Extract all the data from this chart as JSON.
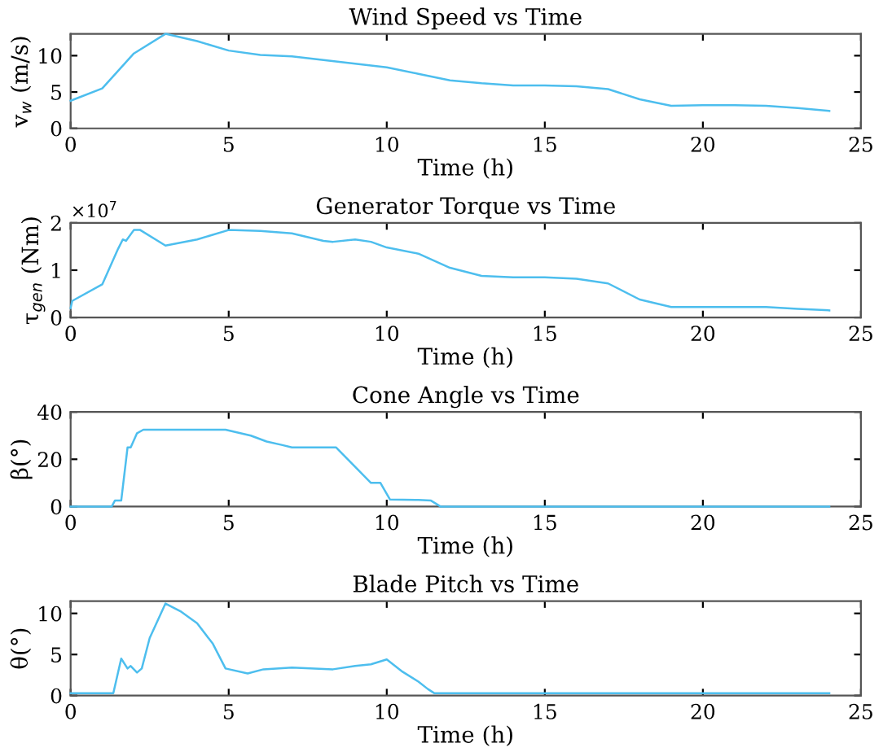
{
  "chart_data": [
    {
      "type": "line",
      "title": "Wind Speed vs Time",
      "xlabel": "Time (h)",
      "ylabel": "v$_{w}$ (m/s)",
      "xlim": [
        0,
        25
      ],
      "xticks": [
        0,
        5,
        10,
        15,
        20,
        25
      ],
      "ylim": [
        0,
        13
      ],
      "yticks": [
        0,
        5,
        10
      ],
      "grid": false,
      "legend": false,
      "x": [
        0,
        1,
        2,
        3,
        4,
        5,
        6,
        7,
        8,
        9,
        10,
        11,
        12,
        13,
        14,
        15,
        16,
        17,
        18,
        19,
        20,
        21,
        22,
        23,
        24
      ],
      "series": [
        {
          "color": "#4dbeee",
          "values": [
            3.8,
            5.5,
            10.3,
            13,
            12,
            10.7,
            10.1,
            9.9,
            9.4,
            8.9,
            8.4,
            7.5,
            6.6,
            6.2,
            5.9,
            5.9,
            5.8,
            5.4,
            4,
            3.1,
            3.2,
            3.2,
            3.1,
            2.8,
            2.4
          ]
        }
      ]
    },
    {
      "type": "line",
      "title": "Generator Torque vs Time",
      "xlabel": "Time (h)",
      "ylabel": "τ$_{gen}$ (Nm)",
      "annotations": [
        "×10$^{7}$"
      ],
      "xlim": [
        0,
        25
      ],
      "xticks": [
        0,
        5,
        10,
        15,
        20,
        25
      ],
      "ylim": [
        0,
        2
      ],
      "yticks": [
        0,
        1,
        2
      ],
      "grid": false,
      "legend": false,
      "x": [
        0,
        0.05,
        1,
        1.5,
        1.65,
        1.75,
        2,
        2.2,
        3,
        4,
        5,
        6,
        7,
        8,
        8.3,
        9,
        9.5,
        10,
        11,
        12,
        13,
        14,
        15,
        16,
        17,
        18,
        19,
        20,
        22,
        23,
        24
      ],
      "series": [
        {
          "color": "#4dbeee",
          "values": [
            0.2,
            0.35,
            0.7,
            1.45,
            1.65,
            1.62,
            1.85,
            1.85,
            1.52,
            1.65,
            1.85,
            1.83,
            1.78,
            1.62,
            1.6,
            1.65,
            1.6,
            1.48,
            1.35,
            1.05,
            0.88,
            0.85,
            0.85,
            0.82,
            0.72,
            0.38,
            0.22,
            0.22,
            0.22,
            0.18,
            0.15
          ]
        }
      ]
    },
    {
      "type": "line",
      "title": "Cone Angle vs Time",
      "xlabel": "Time (h)",
      "ylabel": "β(°)",
      "xlim": [
        0,
        25
      ],
      "xticks": [
        0,
        5,
        10,
        15,
        20,
        25
      ],
      "ylim": [
        0,
        40
      ],
      "yticks": [
        0,
        20,
        40
      ],
      "grid": false,
      "legend": false,
      "x": [
        0,
        1.3,
        1.4,
        1.6,
        1.8,
        1.9,
        2.1,
        2.3,
        4.9,
        5.7,
        6.2,
        6.7,
        7,
        8.4,
        9.5,
        9.8,
        10.1,
        11,
        11.4,
        11.7,
        24
      ],
      "series": [
        {
          "color": "#4dbeee",
          "values": [
            0,
            0,
            2.5,
            2.5,
            25,
            25,
            31,
            32.5,
            32.5,
            30,
            27.5,
            26,
            25,
            25,
            10,
            10,
            3,
            2.8,
            2.5,
            0,
            0
          ]
        }
      ]
    },
    {
      "type": "line",
      "title": "Blade Pitch vs Time",
      "xlabel": "Time (h)",
      "ylabel": "θ(°)",
      "xlim": [
        0,
        25
      ],
      "xticks": [
        0,
        5,
        10,
        15,
        20,
        25
      ],
      "ylim": [
        0,
        11.5
      ],
      "yticks": [
        0,
        5,
        10
      ],
      "grid": false,
      "legend": false,
      "x": [
        0,
        1.35,
        1.6,
        1.8,
        1.9,
        2.1,
        2.25,
        2.5,
        3,
        3.5,
        4,
        4.5,
        4.9,
        5.6,
        6.1,
        7,
        8.3,
        9,
        9.5,
        10,
        10.5,
        11,
        11.3,
        11.5,
        24
      ],
      "series": [
        {
          "color": "#4dbeee",
          "values": [
            0.3,
            0.3,
            4.5,
            3.3,
            3.6,
            2.8,
            3.3,
            7,
            11.2,
            10.2,
            8.8,
            6.3,
            3.3,
            2.7,
            3.2,
            3.4,
            3.2,
            3.6,
            3.8,
            4.4,
            2.9,
            1.7,
            0.8,
            0.3,
            0.3
          ]
        }
      ]
    }
  ]
}
